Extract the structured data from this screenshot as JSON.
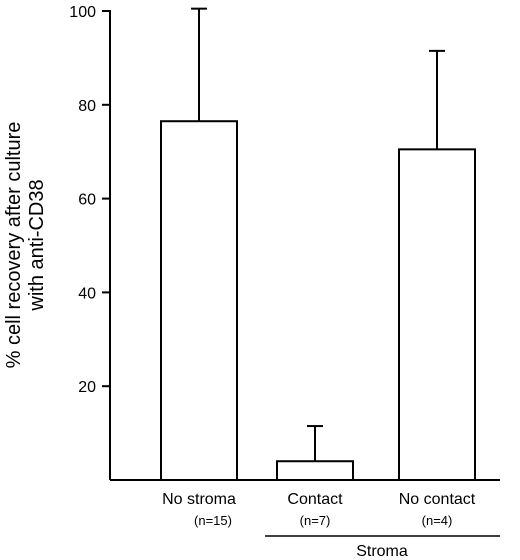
{
  "chart_data": {
    "type": "bar",
    "categories": [
      "No stroma",
      "Contact",
      "No contact"
    ],
    "n_labels": [
      "(n=15)",
      "(n=7)",
      "(n=4)"
    ],
    "values": [
      76.5,
      4,
      70.5
    ],
    "error_upper": [
      100.5,
      11.5,
      91.5
    ],
    "ylabel_line1": "% cell recovery after culture",
    "ylabel_line2": "with anti-CD38",
    "yticks": [
      20,
      40,
      60,
      80,
      100
    ],
    "ylim": [
      0,
      100
    ],
    "group_label": "Stroma",
    "grid": false,
    "colors": {
      "bar_fill": "#ffffff",
      "stroke": "#000000"
    }
  }
}
